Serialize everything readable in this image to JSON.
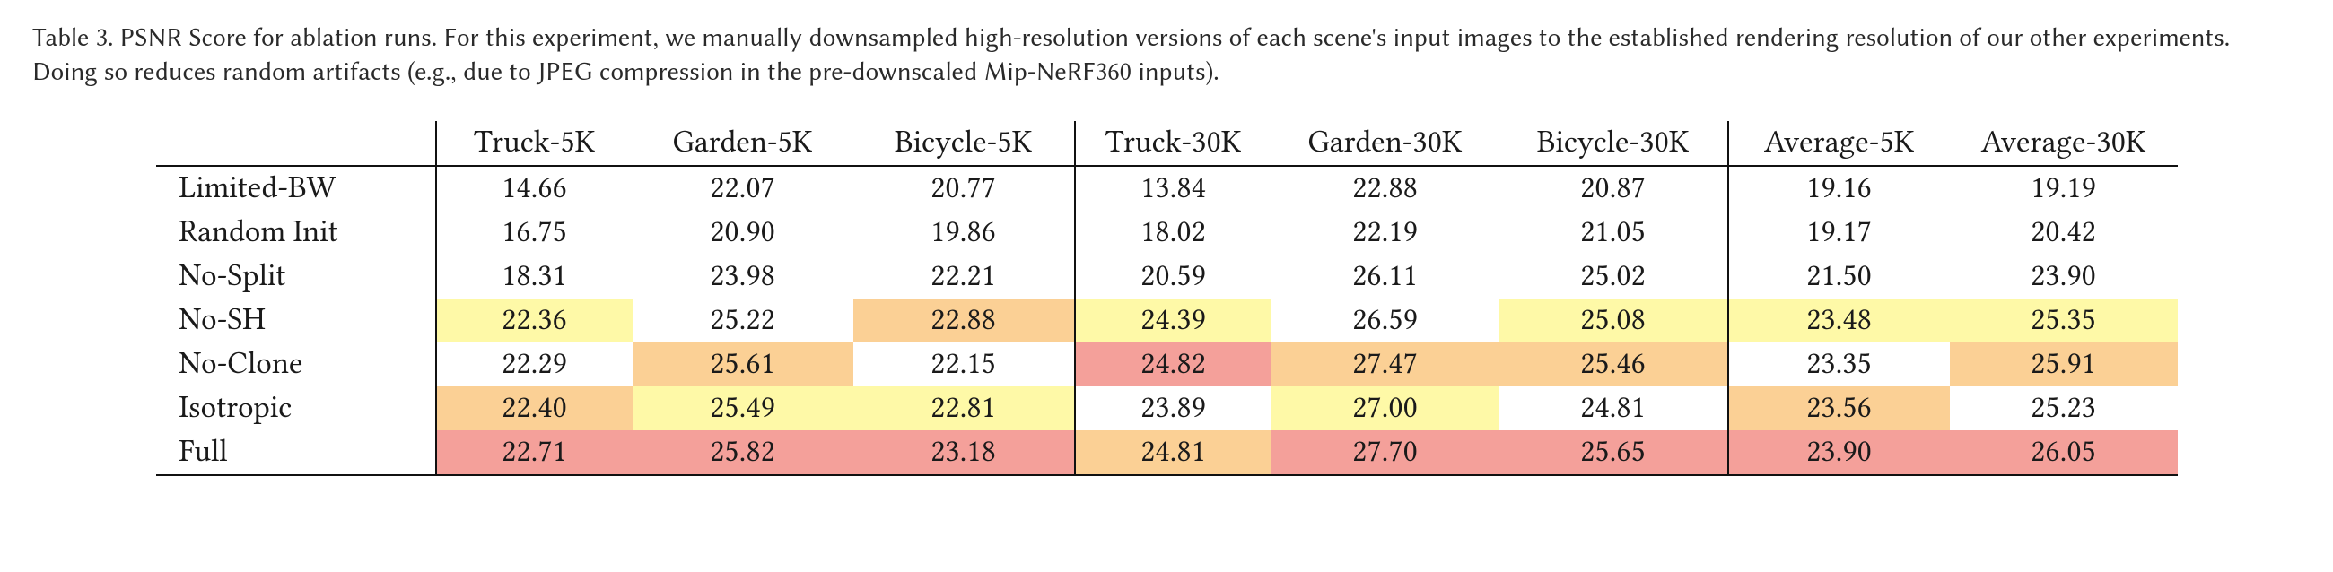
{
  "caption": "Table 3.  PSNR Score for ablation runs. For this experiment, we manually downsampled high-resolution versions of each scene's input images to the established rendering resolution of our other experiments. Doing so reduces random artifacts (e.g., due to JPEG compression in the pre-downscaled Mip-NeRF360 inputs).",
  "columns": [
    {
      "label": "",
      "class": "c-lbl",
      "sep": false
    },
    {
      "label": "Truck-5K",
      "class": "c-n",
      "sep": true
    },
    {
      "label": "Garden-5K",
      "class": "c-w",
      "sep": false
    },
    {
      "label": "Bicycle-5K",
      "class": "c-w",
      "sep": false
    },
    {
      "label": "Truck-30K",
      "class": "c-n",
      "sep": true
    },
    {
      "label": "Garden-30K",
      "class": "c-ww",
      "sep": false
    },
    {
      "label": "Bicycle-30K",
      "class": "c-ww",
      "sep": false
    },
    {
      "label": "Average-5K",
      "class": "c-w",
      "sep": true
    },
    {
      "label": "Average-30K",
      "class": "c-ww",
      "sep": false
    }
  ],
  "palette": {
    "none": "#ffffff",
    "yellow": "#fef9a7",
    "orange": "#fbd095",
    "red": "#f4a09a"
  },
  "rows": [
    {
      "label": "Limited-BW",
      "cells": [
        {
          "v": "14.66",
          "hl": "none"
        },
        {
          "v": "22.07",
          "hl": "none"
        },
        {
          "v": "20.77",
          "hl": "none"
        },
        {
          "v": "13.84",
          "hl": "none"
        },
        {
          "v": "22.88",
          "hl": "none"
        },
        {
          "v": "20.87",
          "hl": "none"
        },
        {
          "v": "19.16",
          "hl": "none"
        },
        {
          "v": "19.19",
          "hl": "none"
        }
      ]
    },
    {
      "label": "Random Init",
      "cells": [
        {
          "v": "16.75",
          "hl": "none"
        },
        {
          "v": "20.90",
          "hl": "none"
        },
        {
          "v": "19.86",
          "hl": "none"
        },
        {
          "v": "18.02",
          "hl": "none"
        },
        {
          "v": "22.19",
          "hl": "none"
        },
        {
          "v": "21.05",
          "hl": "none"
        },
        {
          "v": "19.17",
          "hl": "none"
        },
        {
          "v": "20.42",
          "hl": "none"
        }
      ]
    },
    {
      "label": "No-Split",
      "cells": [
        {
          "v": "18.31",
          "hl": "none"
        },
        {
          "v": "23.98",
          "hl": "none"
        },
        {
          "v": "22.21",
          "hl": "none"
        },
        {
          "v": "20.59",
          "hl": "none"
        },
        {
          "v": "26.11",
          "hl": "none"
        },
        {
          "v": "25.02",
          "hl": "none"
        },
        {
          "v": "21.50",
          "hl": "none"
        },
        {
          "v": "23.90",
          "hl": "none"
        }
      ]
    },
    {
      "label": "No-SH",
      "cells": [
        {
          "v": "22.36",
          "hl": "yellow"
        },
        {
          "v": "25.22",
          "hl": "none"
        },
        {
          "v": "22.88",
          "hl": "orange"
        },
        {
          "v": "24.39",
          "hl": "yellow"
        },
        {
          "v": "26.59",
          "hl": "none"
        },
        {
          "v": "25.08",
          "hl": "yellow"
        },
        {
          "v": "23.48",
          "hl": "yellow"
        },
        {
          "v": "25.35",
          "hl": "yellow"
        }
      ]
    },
    {
      "label": "No-Clone",
      "cells": [
        {
          "v": "22.29",
          "hl": "none"
        },
        {
          "v": "25.61",
          "hl": "orange"
        },
        {
          "v": "22.15",
          "hl": "none"
        },
        {
          "v": "24.82",
          "hl": "red"
        },
        {
          "v": "27.47",
          "hl": "orange"
        },
        {
          "v": "25.46",
          "hl": "orange"
        },
        {
          "v": "23.35",
          "hl": "none"
        },
        {
          "v": "25.91",
          "hl": "orange"
        }
      ]
    },
    {
      "label": "Isotropic",
      "cells": [
        {
          "v": "22.40",
          "hl": "orange"
        },
        {
          "v": "25.49",
          "hl": "yellow"
        },
        {
          "v": "22.81",
          "hl": "yellow"
        },
        {
          "v": "23.89",
          "hl": "none"
        },
        {
          "v": "27.00",
          "hl": "yellow"
        },
        {
          "v": "24.81",
          "hl": "none"
        },
        {
          "v": "23.56",
          "hl": "orange"
        },
        {
          "v": "25.23",
          "hl": "none"
        }
      ]
    },
    {
      "label": "Full",
      "cells": [
        {
          "v": "22.71",
          "hl": "red"
        },
        {
          "v": "25.82",
          "hl": "red"
        },
        {
          "v": "23.18",
          "hl": "red"
        },
        {
          "v": "24.81",
          "hl": "orange"
        },
        {
          "v": "27.70",
          "hl": "red"
        },
        {
          "v": "25.65",
          "hl": "red"
        },
        {
          "v": "23.90",
          "hl": "red"
        },
        {
          "v": "26.05",
          "hl": "red"
        }
      ]
    }
  ]
}
